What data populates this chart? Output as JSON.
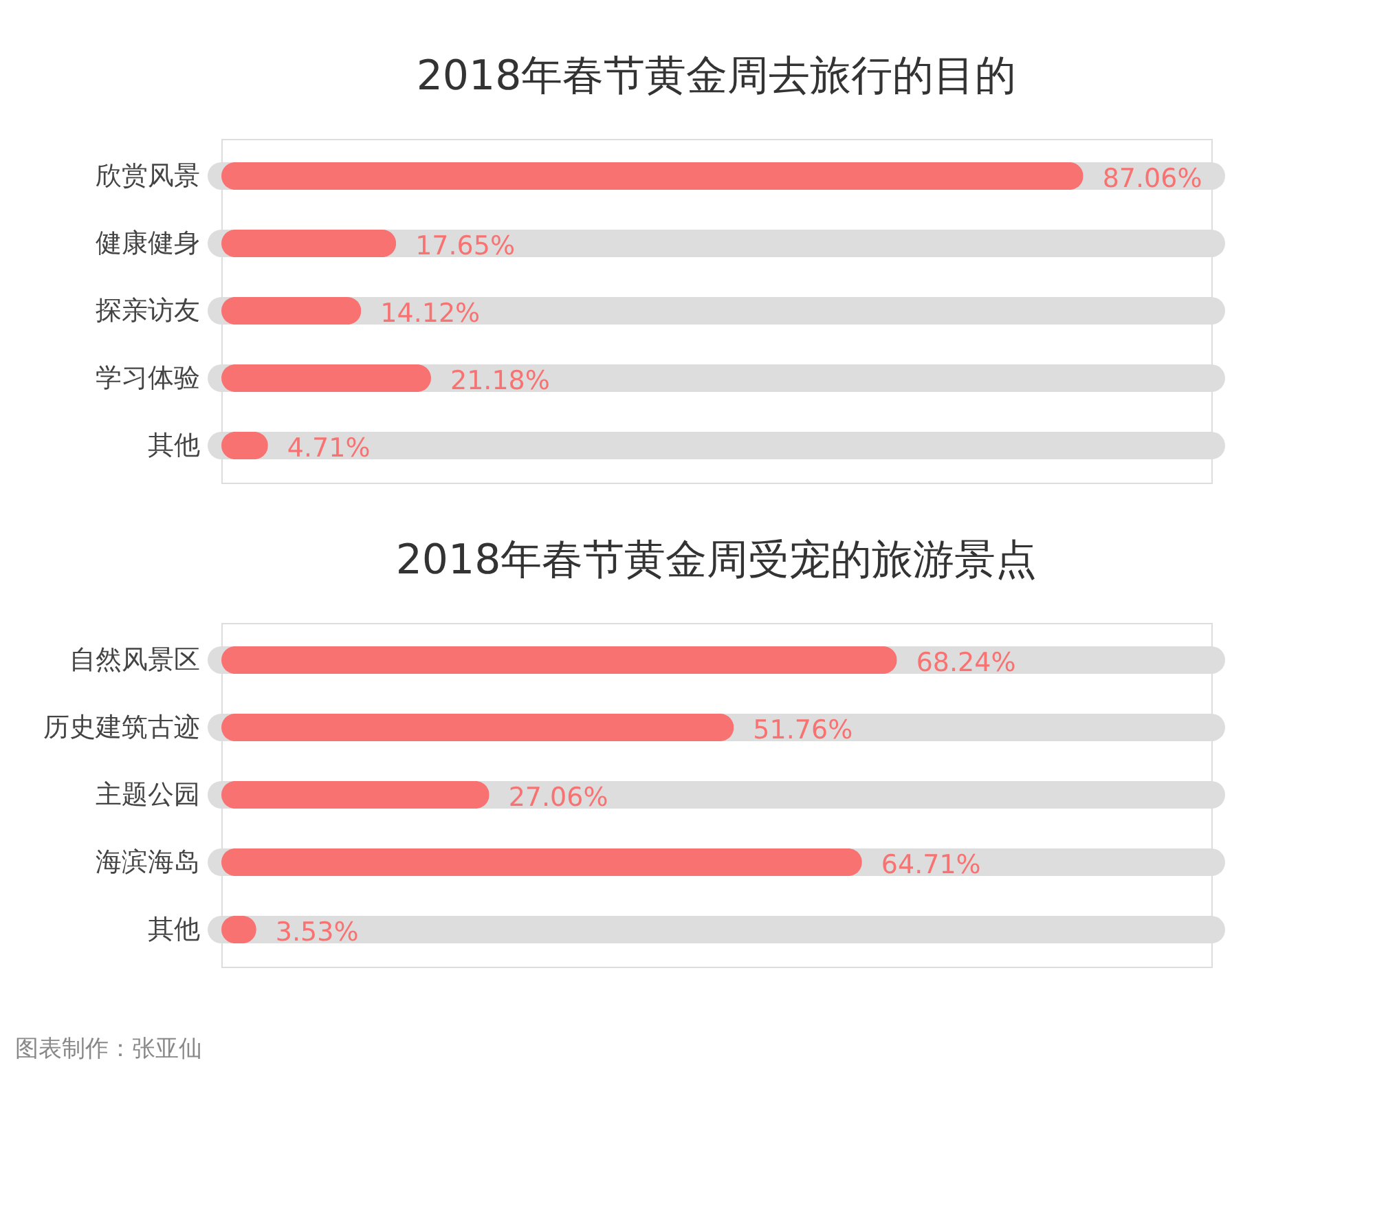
{
  "chart_data": [
    {
      "type": "bar",
      "orientation": "horizontal",
      "title": "2018年春节黄金周去旅行的目的",
      "categories": [
        "欣赏风景",
        "健康健身",
        "探亲访友",
        "学习体验",
        "其他"
      ],
      "values": [
        87.06,
        17.65,
        14.12,
        21.18,
        4.71
      ],
      "value_labels": [
        "87.06%",
        "17.65%",
        "14.12%",
        "21.18%",
        "4.71%"
      ],
      "color": "#f87272",
      "xlim": [
        0,
        100
      ],
      "tick_labels": "y"
    },
    {
      "type": "bar",
      "orientation": "horizontal",
      "title": "2018年春节黄金周受宠的旅游景点",
      "categories": [
        "自然风景区",
        "历史建筑古迹",
        "主题公园",
        "海滨海岛",
        "其他"
      ],
      "values": [
        68.24,
        51.76,
        27.06,
        64.71,
        3.53
      ],
      "value_labels": [
        "68.24%",
        "51.76%",
        "27.06%",
        "64.71%",
        "3.53%"
      ],
      "color": "#f87272",
      "xlim": [
        0,
        100
      ],
      "tick_labels": "y",
      "annotations": [
        "图表制作：张亚仙"
      ]
    }
  ]
}
